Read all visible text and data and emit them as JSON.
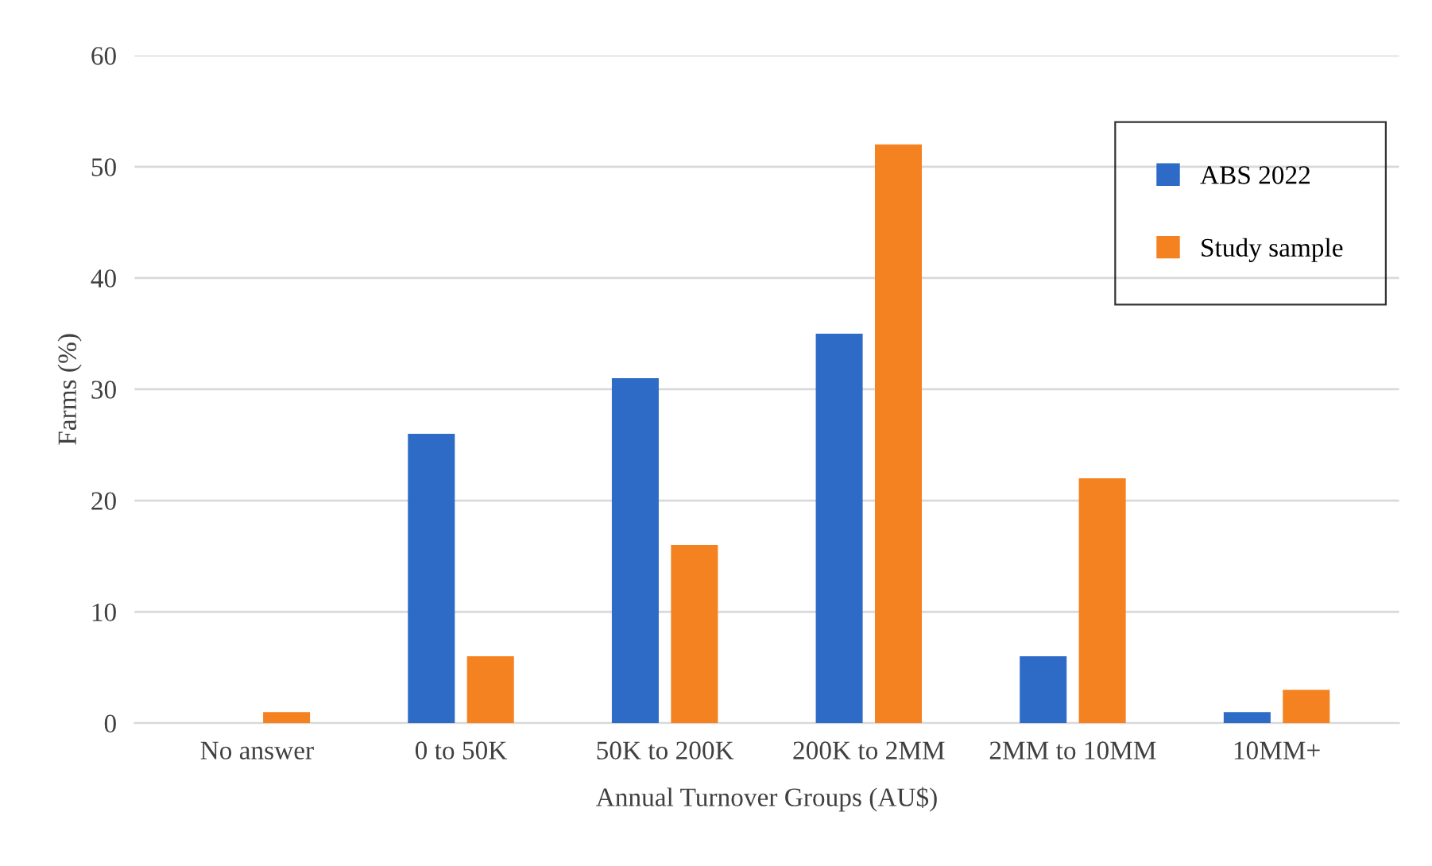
{
  "chart_data": {
    "type": "bar",
    "xlabel": "Annual Turnover Groups (AU$)",
    "ylabel": "Farms (%)",
    "categories": [
      "No answer",
      "0 to 50K",
      "50K to 200K",
      "200K to 2MM",
      "2MM to 10MM",
      "10MM+"
    ],
    "series": [
      {
        "name": "ABS 2022",
        "color": "#2e6bc6",
        "values": [
          null,
          26,
          31,
          35,
          6,
          1
        ]
      },
      {
        "name": "Study sample",
        "color": "#f58220",
        "values": [
          1,
          6,
          16,
          52,
          22,
          3
        ]
      }
    ],
    "ylim": [
      0,
      60
    ],
    "yticks": [
      0,
      10,
      20,
      30,
      40,
      50,
      60
    ],
    "grid": "y",
    "legend": "top right"
  }
}
